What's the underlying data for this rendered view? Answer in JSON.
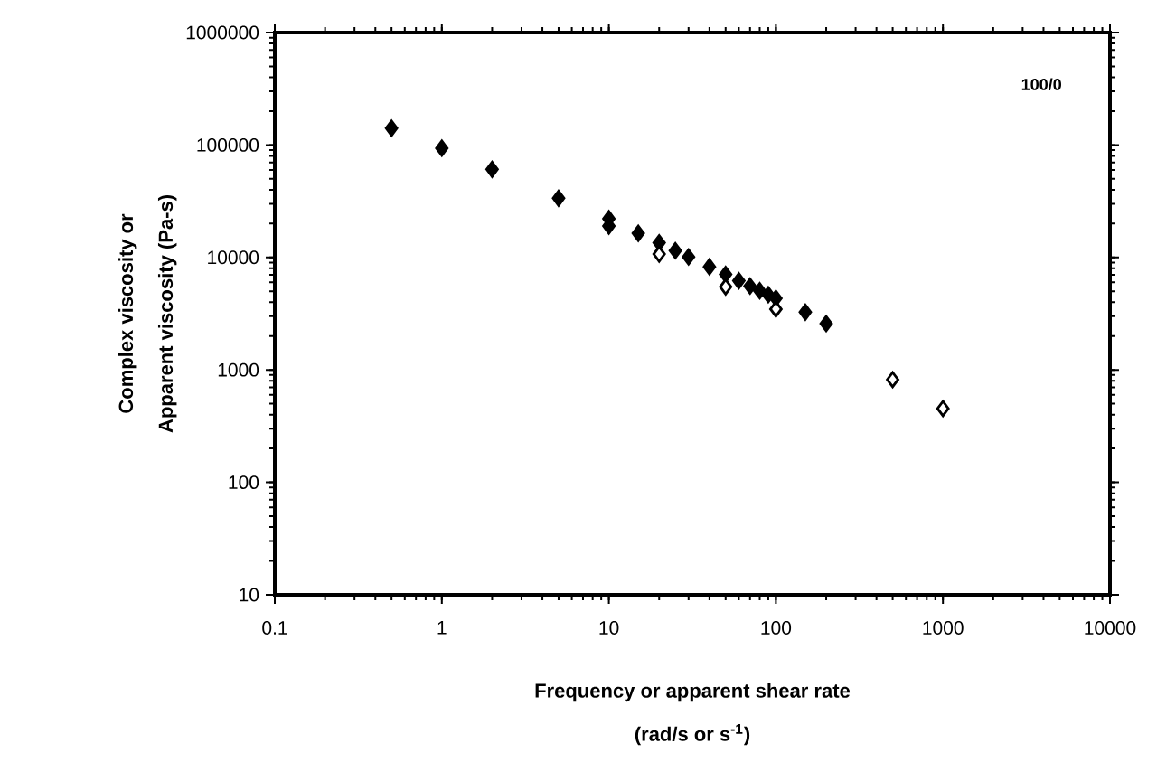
{
  "chart_data": {
    "type": "scatter",
    "xlabel": "Frequency or apparent shear rate\n(rad/s or s$^{-1}$)",
    "ylabel": "Complex viscosity or\nApparent viscosity  (Pa-s)",
    "log": "xy",
    "marker": "diamond",
    "grid": false,
    "xlim": [
      0.1,
      10000
    ],
    "ylim": [
      10,
      1000000
    ],
    "xticks": [
      0.1,
      1,
      10,
      100,
      1000,
      10000
    ],
    "yticks": [
      10,
      100,
      1000,
      10000,
      100000,
      1000000
    ],
    "annotations": [
      "100/0"
    ],
    "series": [
      {
        "color": "#000000",
        "x": [
          0.5,
          1,
          2,
          5,
          10,
          10,
          15,
          20,
          25,
          30,
          40,
          50,
          60,
          70,
          80,
          90,
          100,
          150,
          200
        ],
        "values": [
          141000,
          93600,
          60700,
          33600,
          22100,
          19000,
          16400,
          13500,
          11500,
          10100,
          8250,
          7060,
          6200,
          5560,
          5050,
          4660,
          4330,
          3260,
          2580
        ]
      },
      {
        "color": "#ffffff",
        "x": [
          20,
          50,
          100,
          500,
          1000
        ],
        "values": [
          10700,
          5470,
          3470,
          819,
          453
        ]
      }
    ]
  }
}
